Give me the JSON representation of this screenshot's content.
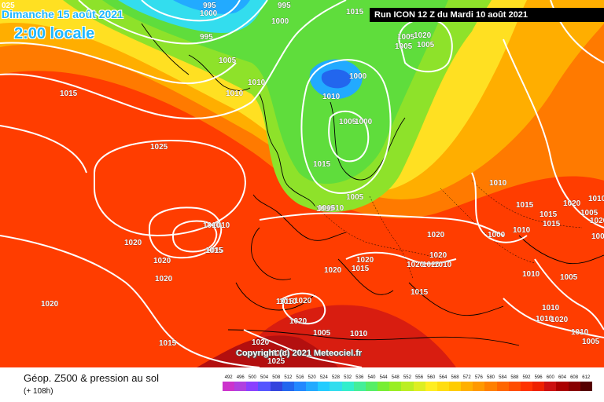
{
  "header": {
    "date": "Dimanche 15 août 2021",
    "time": "2:00 locale",
    "run": "Run ICON 12 Z du Mardi 10 août 2021",
    "corner": "025"
  },
  "map": {
    "copyright": "Copyright (c) 2021 Meteociel.fr",
    "pressure_labels": [
      "995",
      "1000",
      "995",
      "1015",
      "1000",
      "995",
      "1005",
      "1005",
      "1020",
      "1005",
      "1005",
      "1015",
      "1010",
      "1010",
      "1000",
      "1010",
      "1005",
      "1000",
      "1025",
      "1015",
      "1010",
      "1010",
      "1015",
      "1010",
      "1020",
      "1020",
      "1020",
      "1015",
      "1005",
      "1010",
      "1015",
      "1015",
      "1015",
      "1020",
      "1020",
      "1015",
      "1020",
      "1020",
      "1020",
      "1020",
      "1010",
      "1010",
      "1005",
      "1000",
      "1010",
      "1015",
      "1020",
      "1010",
      "1020",
      "1020",
      "1015",
      "1020",
      "1015",
      "1020",
      "1010",
      "1020",
      "1025",
      "1020",
      "1010",
      "1010",
      "1020",
      "1000",
      "1005",
      "1010",
      "1005",
      "1015",
      "1005",
      "1010",
      "1010"
    ]
  },
  "legend": {
    "title": "Géop. Z500 & pression au sol",
    "lead": "(+ 108h)",
    "ticks": [
      "492",
      "496",
      "500",
      "504",
      "508",
      "512",
      "516",
      "520",
      "524",
      "528",
      "532",
      "536",
      "540",
      "544",
      "548",
      "552",
      "556",
      "560",
      "564",
      "568",
      "572",
      "576",
      "580",
      "584",
      "588",
      "592",
      "596",
      "600",
      "604",
      "608",
      "612"
    ],
    "colors": [
      "#cc33cc",
      "#b040e0",
      "#8a40ff",
      "#5555ff",
      "#3344dd",
      "#2266ee",
      "#2288ff",
      "#22aaff",
      "#22ccff",
      "#33ddee",
      "#33eecc",
      "#44ee99",
      "#55ee66",
      "#77ee33",
      "#99ee22",
      "#bbee22",
      "#ddee22",
      "#ffee22",
      "#ffdd11",
      "#ffcc00",
      "#ffb000",
      "#ff9900",
      "#ff8000",
      "#ff6600",
      "#ff4d00",
      "#ff3300",
      "#ee2200",
      "#cc1111",
      "#aa0000",
      "#880000",
      "#550000"
    ]
  }
}
